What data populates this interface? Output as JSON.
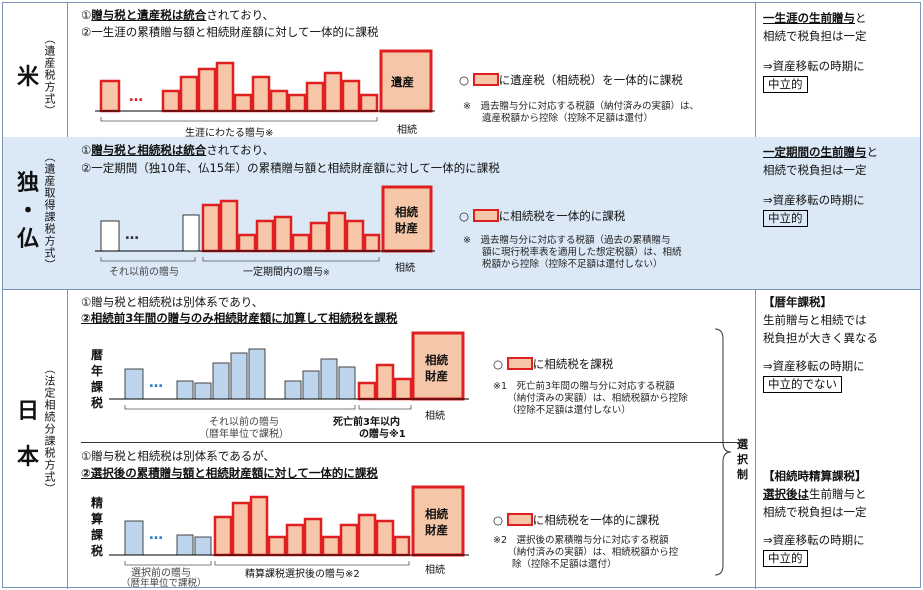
{
  "us": {
    "country": "米",
    "method": "（遺産税方式）",
    "line1_b1": "贈与税と遺産税は統合",
    "line1_pre": "①",
    "line1_post": "されており、",
    "line2": "②一生涯の累積贈与額と相続財産額に対して一体的に課税",
    "estate_label": "遺産",
    "axis_gift": "生涯にわたる贈与※",
    "axis_inherit": "相続",
    "legend": "に遺産税（相続税）を一体的に課税",
    "note": "※　過去贈与分に対応する税額（納付済みの実額）は、\n　　遺産税額から控除（控除不足額は還付）",
    "right_title": "一生涯の生前贈与",
    "right_suffix": "と",
    "right_line2": "相続で税負担は一定",
    "right_line3": "⇒資産移転の時期に",
    "right_box": "中立的"
  },
  "de": {
    "country1": "独",
    "country2": "・",
    "country3": "仏",
    "method": "（遺産取得課税方式）",
    "line1_pre": "①",
    "line1_b": "贈与税と相続税は統合",
    "line1_post": "されており、",
    "line2": "②一定期間（独10年、仏15年）の累積贈与額と相続財産額に対して一体的に課税",
    "estate_label1": "相続",
    "estate_label2": "財産",
    "axis_prev": "それ以前の贈与",
    "axis_gift": "一定期間内の贈与",
    "axis_mark": "※",
    "axis_inherit": "相続",
    "legend": "に相続税を一体的に課税",
    "note": "※　過去贈与分に対応する税額（過去の累積贈与\n　　額に現行税率表を適用した想定税額）は、相続\n　　税額から控除（控除不足額は還付しない）",
    "right_title": "一定期間の生前贈与",
    "right_suffix": "と",
    "right_line2": "相続で税負担は一定",
    "right_line3": "⇒資産移転の時期に",
    "right_box": "中立的"
  },
  "jp": {
    "country1": "日",
    "country2": "本",
    "method": "（法定相続分課税方式）",
    "a_line1": "①贈与税と相続税は別体系であり、",
    "a_line2": "②相続前3年間の贈与のみ相続財産額に加算して相続税を課税",
    "a_side": "暦年課税",
    "a_estate1": "相続",
    "a_estate2": "財産",
    "a_axis_prev": "それ以前の贈与",
    "a_axis_prev2": "（暦年単位で課税）",
    "a_axis_3y": "死亡前3年以内",
    "a_axis_3y2": "の贈与※1",
    "a_axis_inherit": "相続",
    "a_legend": "に相続税を課税",
    "a_note": "※1　死亡前3年間の贈与分に対応する税額\n　　（納付済みの実額）は、相続税額から控除\n　　（控除不足額は還付しない）",
    "b_line1": "①贈与税と相続税は別体系であるが、",
    "b_line2": "②選択後の累積贈与額と相続財産額に対して一体的に課税",
    "b_side": "精算課税",
    "b_estate1": "相続",
    "b_estate2": "財産",
    "b_axis_prev": "選択前の贈与",
    "b_axis_prev2": "（暦年単位で課税）",
    "b_axis_gift": "精算課税選択後の贈与※2",
    "b_axis_inherit": "相続",
    "b_legend": "に相続税を一体的に課税",
    "b_note": "※2　選択後の累積贈与分に対応する税額\n　　（納付済みの実額）は、相続税額から控\n　　除（控除不足額は還付）",
    "select": "選択制",
    "r1_title": "【暦年課税】",
    "r1_l2": "生前贈与と相続では",
    "r1_l3": "税負担が大きく異なる",
    "r1_l4": "⇒資産移転の時期に",
    "r1_box": "中立的でない",
    "r2_title": "【相続時精算課税】",
    "r2_b": "選択後は",
    "r2_l2": "生前贈与と",
    "r2_l3": "相続で税負担は一定",
    "r2_l4": "⇒資産移転の時期に",
    "r2_box": "中立的"
  },
  "colors": {
    "red": "#e02020",
    "fill": "#f6c6a8",
    "blue": "#bcd4ec",
    "border": "#7a94b8",
    "band": "#dbe9f7"
  }
}
